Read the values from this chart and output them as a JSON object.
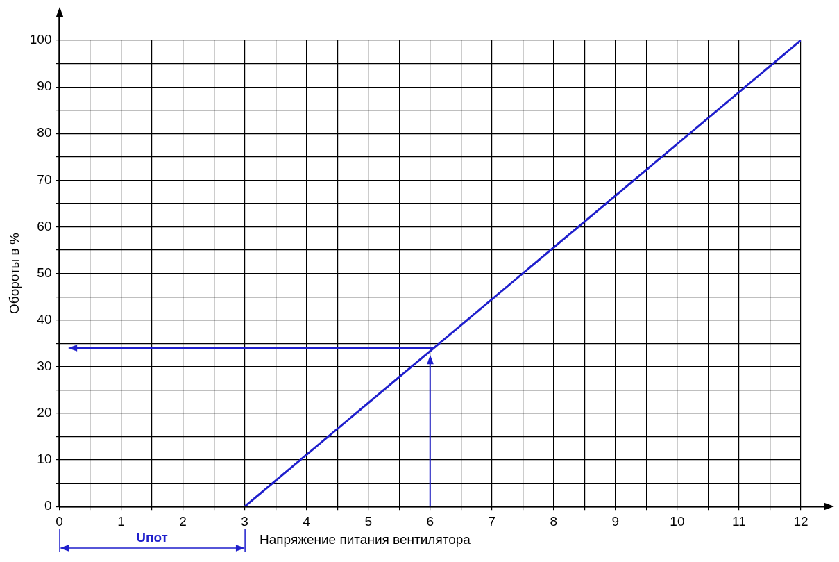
{
  "chart_data": {
    "type": "line",
    "xlabel": "Напряжение питания вентилятора",
    "ylabel": "Обороты в %",
    "series": [
      {
        "color": "#1f1fcc",
        "x": [
          3,
          12
        ],
        "values": [
          0,
          100
        ]
      }
    ],
    "xlim": [
      0,
      12
    ],
    "ylim": [
      0,
      100
    ],
    "xticks": [
      0,
      {
        "value": 0.5,
        "label": null
      },
      1,
      {
        "value": 1.5,
        "label": null
      },
      2,
      {
        "value": 2.5,
        "label": null
      },
      3,
      {
        "value": 3.5,
        "label": null
      },
      4,
      {
        "value": 4.5,
        "label": null
      },
      5,
      {
        "value": 5.5,
        "label": null
      },
      6,
      {
        "value": 6.5,
        "label": null
      },
      7,
      {
        "value": 7.5,
        "label": null
      },
      8,
      {
        "value": 8.5,
        "label": null
      },
      9,
      {
        "value": 9.5,
        "label": null
      },
      10,
      {
        "value": 10.5,
        "label": null
      },
      11,
      {
        "value": 11.5,
        "label": null
      },
      12
    ],
    "yticks": [
      0,
      {
        "value": 5,
        "label": null
      },
      10,
      {
        "value": 15,
        "label": null
      },
      20,
      {
        "value": 25,
        "label": null
      },
      30,
      {
        "value": 35,
        "label": null
      },
      40,
      {
        "value": 45,
        "label": null
      },
      50,
      {
        "value": 55,
        "label": null
      },
      60,
      {
        "value": 65,
        "label": null
      },
      70,
      {
        "value": 75,
        "label": null
      },
      80,
      {
        "value": 85,
        "label": null
      },
      90,
      {
        "value": 95,
        "label": null
      },
      100
    ],
    "ref_lines": [
      {
        "axis": "x",
        "value": 6,
        "color": "#1f1fcc"
      },
      {
        "axis": "y",
        "value": 34,
        "color": "#1f1fcc"
      }
    ],
    "annotations": [
      "Uпот"
    ],
    "grid": true,
    "legend": false,
    "marker": "none",
    "line_style": "solid"
  }
}
